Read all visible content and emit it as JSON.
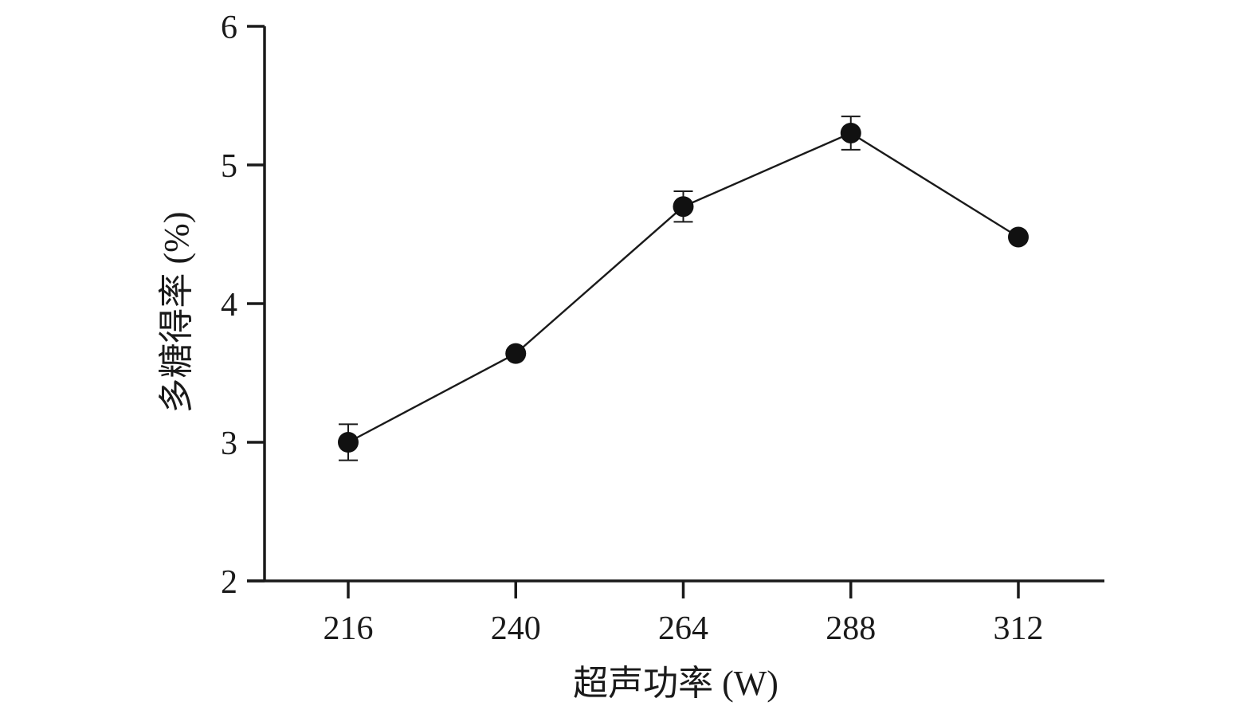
{
  "chart_data": {
    "type": "line",
    "title": "",
    "xlabel": "超声功率 (W)",
    "ylabel": "多糖得率 (%)",
    "x": [
      216,
      240,
      264,
      288,
      312
    ],
    "x_tick_labels": [
      "216",
      "240",
      "264",
      "288",
      "312"
    ],
    "y_tick_values": [
      2,
      3,
      4,
      5,
      6
    ],
    "y_tick_labels": [
      "2",
      "3",
      "4",
      "5",
      "6"
    ],
    "ylim": [
      2,
      6
    ],
    "series": [
      {
        "values": [
          3.0,
          3.64,
          4.7,
          5.23,
          4.48
        ],
        "error": [
          0.13,
          0.0,
          0.11,
          0.12,
          0.0
        ]
      }
    ],
    "grid": false,
    "legend": "none",
    "colors": {
      "axis": "#1a1a1a",
      "line": "#1a1a1a",
      "marker": "#111111"
    }
  }
}
